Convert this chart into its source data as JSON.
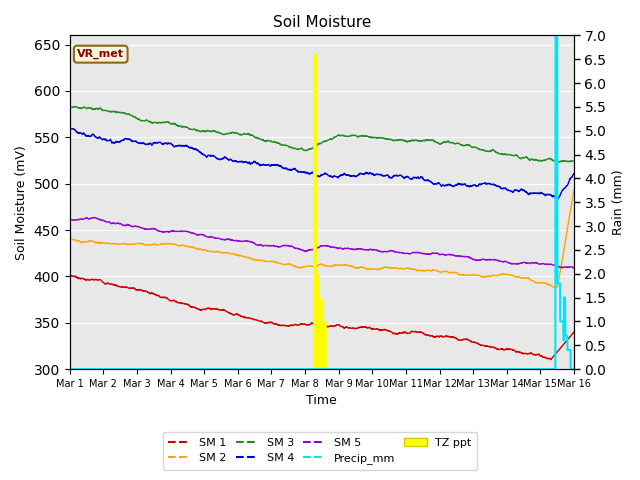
{
  "title": "Soil Moisture",
  "xlabel": "Time",
  "ylabel_left": "Soil Moisture (mV)",
  "ylabel_right": "Rain (mm)",
  "ylim_left": [
    300,
    660
  ],
  "ylim_right": [
    0.0,
    7.0
  ],
  "yticks_left": [
    300,
    350,
    400,
    450,
    500,
    550,
    600,
    650
  ],
  "yticks_right": [
    0.0,
    0.5,
    1.0,
    1.5,
    2.0,
    2.5,
    3.0,
    3.5,
    4.0,
    4.5,
    5.0,
    5.5,
    6.0,
    6.5,
    7.0
  ],
  "bg_color": "#e8e8e8",
  "annotation_text": "VR_met",
  "annotation_color": "#8b0000",
  "annotation_bg": "#f5f5dc",
  "annotation_border": "#8b6914",
  "sm1_color": "#cc0000",
  "sm2_color": "#ffa500",
  "sm3_color": "#228b22",
  "sm4_color": "#0000cd",
  "sm5_color": "#9400d3",
  "precip_color": "#00e5ff",
  "tz_color": "#ffff00"
}
